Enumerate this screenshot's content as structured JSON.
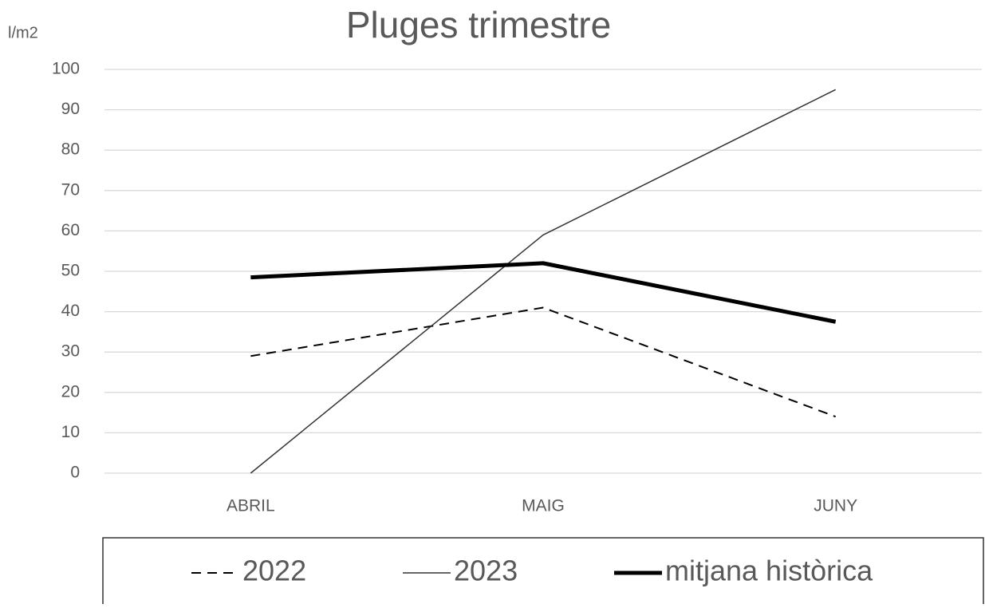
{
  "chart_data": {
    "type": "line",
    "title": "Pluges trimestre",
    "y_label": "l/m2",
    "categories": [
      "ABRIL",
      "MAIG",
      "JUNY"
    ],
    "series": [
      {
        "name": "2022",
        "color": "#000000",
        "line_width": 2,
        "dash": true,
        "values": [
          29,
          41,
          14
        ]
      },
      {
        "name": "2023",
        "color": "#333333",
        "line_width": 1.5,
        "dash": false,
        "values": [
          0,
          59,
          95
        ]
      },
      {
        "name": "mitjana històrica",
        "color": "#000000",
        "line_width": 5,
        "dash": false,
        "values": [
          48.5,
          52,
          37.5
        ]
      }
    ],
    "ylim": [
      0,
      100
    ],
    "yticks": [
      0,
      10,
      20,
      30,
      40,
      50,
      60,
      70,
      80,
      90,
      100
    ],
    "grid": true,
    "legend": "bottom"
  }
}
